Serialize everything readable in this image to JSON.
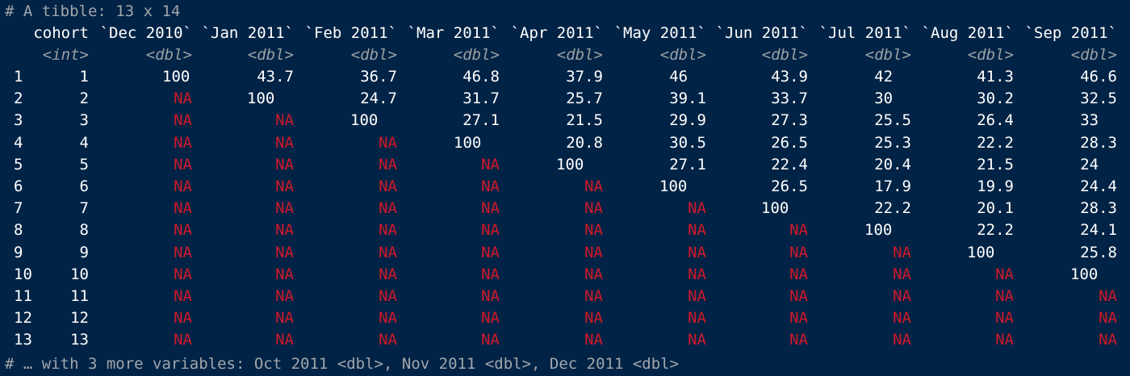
{
  "header_comment": "# A tibble: 13 x 14",
  "footer_comment": "# … with 3 more variables: Oct 2011 <dbl>, Nov 2011 <dbl>, Dec 2011 <dbl>",
  "columns": [
    {
      "name": "cohort",
      "type": "<int>"
    },
    {
      "name": "`Dec 2010`",
      "type": "<dbl>"
    },
    {
      "name": "`Jan 2011`",
      "type": "<dbl>"
    },
    {
      "name": "`Feb 2011`",
      "type": "<dbl>"
    },
    {
      "name": "`Mar 2011`",
      "type": "<dbl>"
    },
    {
      "name": "`Apr 2011`",
      "type": "<dbl>"
    },
    {
      "name": "`May 2011`",
      "type": "<dbl>"
    },
    {
      "name": "`Jun 2011`",
      "type": "<dbl>"
    },
    {
      "name": "`Jul 2011`",
      "type": "<dbl>"
    },
    {
      "name": "`Aug 2011`",
      "type": "<dbl>"
    },
    {
      "name": "`Sep 2011`",
      "type": "<dbl>"
    }
  ],
  "rows": [
    {
      "num": "1",
      "cells": [
        "1",
        "100",
        "43.7",
        "36.7",
        "46.8",
        "37.9",
        "46",
        "43.9",
        "42",
        "41.3",
        "46.6"
      ]
    },
    {
      "num": "2",
      "cells": [
        "2",
        "NA",
        "100",
        "24.7",
        "31.7",
        "25.7",
        "39.1",
        "33.7",
        "30",
        "30.2",
        "32.5"
      ]
    },
    {
      "num": "3",
      "cells": [
        "3",
        "NA",
        "NA",
        "100",
        "27.1",
        "21.5",
        "29.9",
        "27.3",
        "25.5",
        "26.4",
        "33"
      ]
    },
    {
      "num": "4",
      "cells": [
        "4",
        "NA",
        "NA",
        "NA",
        "100",
        "20.8",
        "30.5",
        "26.5",
        "25.3",
        "22.2",
        "28.3"
      ]
    },
    {
      "num": "5",
      "cells": [
        "5",
        "NA",
        "NA",
        "NA",
        "NA",
        "100",
        "27.1",
        "22.4",
        "20.4",
        "21.5",
        "24"
      ]
    },
    {
      "num": "6",
      "cells": [
        "6",
        "NA",
        "NA",
        "NA",
        "NA",
        "NA",
        "100",
        "26.5",
        "17.9",
        "19.9",
        "24.4"
      ]
    },
    {
      "num": "7",
      "cells": [
        "7",
        "NA",
        "NA",
        "NA",
        "NA",
        "NA",
        "NA",
        "100",
        "22.2",
        "20.1",
        "28.3"
      ]
    },
    {
      "num": "8",
      "cells": [
        "8",
        "NA",
        "NA",
        "NA",
        "NA",
        "NA",
        "NA",
        "NA",
        "100",
        "22.2",
        "24.1"
      ]
    },
    {
      "num": "9",
      "cells": [
        "9",
        "NA",
        "NA",
        "NA",
        "NA",
        "NA",
        "NA",
        "NA",
        "NA",
        "100",
        "25.8"
      ]
    },
    {
      "num": "10",
      "cells": [
        "10",
        "NA",
        "NA",
        "NA",
        "NA",
        "NA",
        "NA",
        "NA",
        "NA",
        "NA",
        "100"
      ]
    },
    {
      "num": "11",
      "cells": [
        "11",
        "NA",
        "NA",
        "NA",
        "NA",
        "NA",
        "NA",
        "NA",
        "NA",
        "NA",
        "NA"
      ]
    },
    {
      "num": "12",
      "cells": [
        "12",
        "NA",
        "NA",
        "NA",
        "NA",
        "NA",
        "NA",
        "NA",
        "NA",
        "NA",
        "NA"
      ]
    },
    {
      "num": "13",
      "cells": [
        "13",
        "NA",
        "NA",
        "NA",
        "NA",
        "NA",
        "NA",
        "NA",
        "NA",
        "NA",
        "NA"
      ]
    }
  ],
  "colors": {
    "background": "#012345",
    "text": "#ffffff",
    "comment": "#a0a6ad",
    "type": "#9aa0a6",
    "na": "#d0192a"
  }
}
